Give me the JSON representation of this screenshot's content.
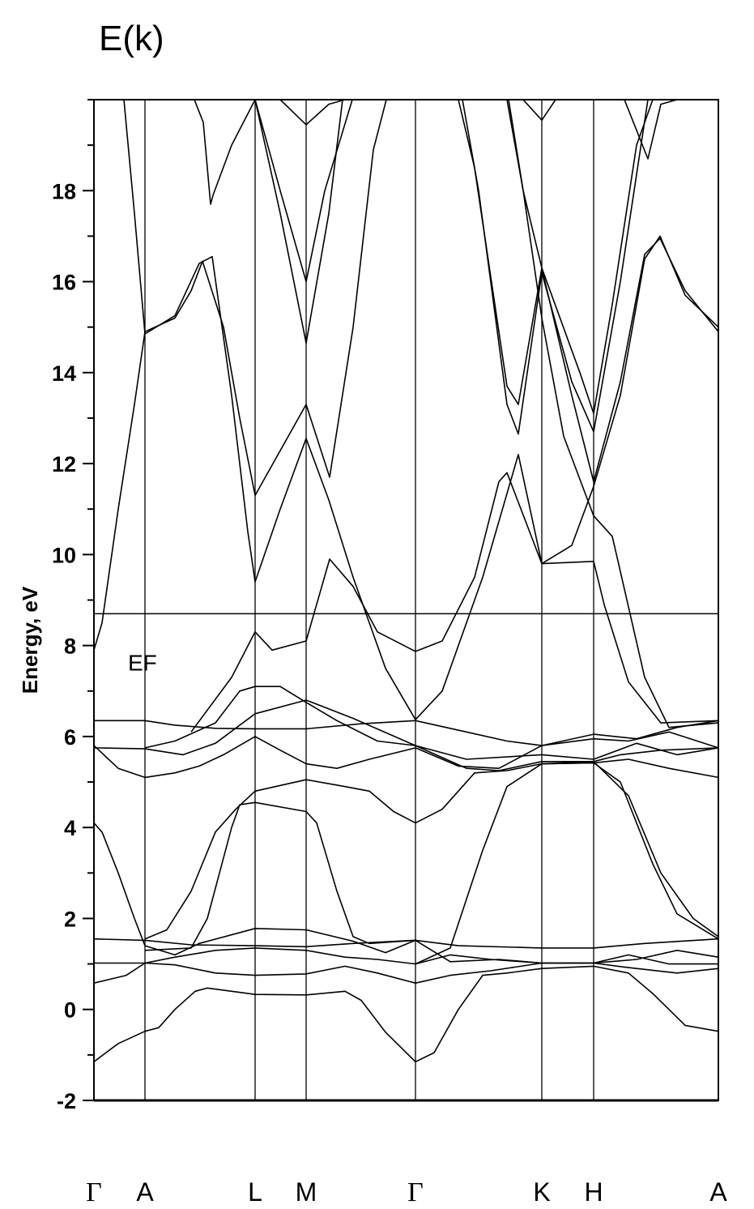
{
  "chart_data": {
    "type": "line",
    "title": "E(k)",
    "xlabel": "",
    "ylabel": "Energy, eV",
    "ylim": [
      -2,
      20
    ],
    "yticks": [
      -2,
      0,
      2,
      4,
      6,
      8,
      10,
      12,
      14,
      16,
      18
    ],
    "ytick_labels": [
      "-2",
      "0",
      "2",
      "4",
      "6",
      "8",
      "10",
      "12",
      "14",
      "16",
      "18"
    ],
    "y_minor_step": 1,
    "grid": false,
    "legend": "none",
    "line_color": "#000000",
    "high_symmetry_points": [
      {
        "label": "Γ",
        "k": 0
      },
      {
        "label": "A",
        "k": 0.63
      },
      {
        "label": "L",
        "k": 1.99
      },
      {
        "label": "M",
        "k": 2.62
      },
      {
        "label": "Γ",
        "k": 3.97
      },
      {
        "label": "K",
        "k": 5.53
      },
      {
        "label": "H",
        "k": 6.17
      },
      {
        "label": "A",
        "k": 7.71
      }
    ],
    "xlim": [
      0,
      7.71
    ],
    "fermi_level": {
      "label": "EF",
      "energy": 8.7
    },
    "bands": [
      [
        [
          0,
          -1.15
        ],
        [
          0.3,
          -0.75
        ],
        [
          0.63,
          -0.48
        ],
        [
          0.8,
          -0.4
        ],
        [
          1.0,
          0.0
        ],
        [
          1.25,
          0.4
        ],
        [
          1.4,
          0.47
        ],
        [
          1.99,
          0.33
        ],
        [
          2.62,
          0.32
        ],
        [
          3.1,
          0.4
        ],
        [
          3.3,
          0.2
        ],
        [
          3.6,
          -0.5
        ],
        [
          3.97,
          -1.15
        ],
        [
          4.2,
          -0.95
        ],
        [
          4.5,
          0.0
        ],
        [
          4.8,
          0.75
        ],
        [
          5.1,
          0.8
        ],
        [
          5.53,
          0.9
        ],
        [
          6.17,
          0.95
        ],
        [
          6.6,
          0.8
        ],
        [
          6.9,
          0.35
        ],
        [
          7.3,
          -0.35
        ],
        [
          7.71,
          -0.48
        ]
      ],
      [
        [
          0,
          0.58
        ],
        [
          0.4,
          0.75
        ],
        [
          0.63,
          1.02
        ],
        [
          1.0,
          0.98
        ],
        [
          1.5,
          0.8
        ],
        [
          1.99,
          0.75
        ],
        [
          2.62,
          0.78
        ],
        [
          3.1,
          0.95
        ],
        [
          3.5,
          0.8
        ],
        [
          3.97,
          0.58
        ],
        [
          4.4,
          0.75
        ],
        [
          4.9,
          0.85
        ],
        [
          5.53,
          1.02
        ],
        [
          6.17,
          1.02
        ],
        [
          6.6,
          0.92
        ],
        [
          7.2,
          0.8
        ],
        [
          7.71,
          0.9
        ]
      ],
      [
        [
          0,
          1.02
        ],
        [
          0.63,
          1.02
        ],
        [
          1.0,
          1.15
        ],
        [
          1.5,
          1.3
        ],
        [
          1.99,
          1.35
        ],
        [
          2.62,
          1.3
        ],
        [
          3.1,
          1.15
        ],
        [
          3.5,
          1.1
        ],
        [
          3.97,
          1.0
        ],
        [
          4.4,
          1.2
        ],
        [
          4.9,
          1.1
        ],
        [
          5.53,
          1.02
        ],
        [
          6.17,
          1.02
        ],
        [
          6.6,
          1.2
        ],
        [
          7.1,
          1.0
        ],
        [
          7.71,
          1.0
        ]
      ],
      [
        [
          0,
          1.55
        ],
        [
          0.63,
          1.52
        ],
        [
          1.2,
          1.42
        ],
        [
          1.99,
          1.4
        ],
        [
          2.62,
          1.38
        ],
        [
          3.2,
          1.45
        ],
        [
          3.97,
          1.52
        ],
        [
          4.5,
          1.4
        ],
        [
          5.53,
          1.35
        ],
        [
          6.17,
          1.35
        ],
        [
          6.8,
          1.45
        ],
        [
          7.71,
          1.55
        ]
      ],
      [
        [
          0,
          4.1
        ],
        [
          0.1,
          3.9
        ],
        [
          0.3,
          3.0
        ],
        [
          0.5,
          2.0
        ],
        [
          0.63,
          1.4
        ],
        [
          1.0,
          1.2
        ],
        [
          1.3,
          1.45
        ],
        [
          1.99,
          1.78
        ],
        [
          2.62,
          1.75
        ],
        [
          3.2,
          1.5
        ],
        [
          3.6,
          1.25
        ],
        [
          3.97,
          1.52
        ],
        [
          4.4,
          1.05
        ],
        [
          5.0,
          1.1
        ],
        [
          5.53,
          1.02
        ],
        [
          6.17,
          1.02
        ],
        [
          6.7,
          1.1
        ],
        [
          7.2,
          1.3
        ],
        [
          7.71,
          1.15
        ]
      ],
      [
        [
          0.63,
          1.55
        ],
        [
          0.9,
          1.75
        ],
        [
          1.2,
          2.6
        ],
        [
          1.5,
          3.9
        ],
        [
          1.75,
          4.4
        ],
        [
          1.99,
          4.8
        ],
        [
          2.62,
          5.05
        ],
        [
          3.1,
          4.9
        ],
        [
          3.4,
          4.8
        ],
        [
          3.7,
          4.35
        ],
        [
          3.97,
          4.1
        ],
        [
          4.3,
          4.4
        ],
        [
          4.7,
          5.2
        ],
        [
          5.1,
          5.25
        ],
        [
          5.53,
          5.4
        ],
        [
          6.17,
          5.42
        ],
        [
          6.6,
          5.5
        ],
        [
          7.1,
          5.3
        ],
        [
          7.71,
          5.1
        ]
      ],
      [
        [
          0.63,
          1.3
        ],
        [
          1.2,
          1.35
        ],
        [
          1.4,
          2.0
        ],
        [
          1.7,
          4.0
        ],
        [
          1.8,
          4.5
        ],
        [
          1.99,
          4.55
        ],
        [
          2.62,
          4.35
        ],
        [
          2.75,
          4.1
        ],
        [
          3.0,
          2.6
        ],
        [
          3.2,
          1.6
        ],
        [
          3.4,
          1.45
        ],
        [
          3.97,
          1.52
        ]
      ],
      [
        [
          3.97,
          1.0
        ],
        [
          4.4,
          1.35
        ],
        [
          4.8,
          3.5
        ],
        [
          5.1,
          4.9
        ],
        [
          5.53,
          5.4
        ],
        [
          6.17,
          5.42
        ],
        [
          6.5,
          5.0
        ],
        [
          6.9,
          3.2
        ],
        [
          7.2,
          2.1
        ],
        [
          7.71,
          1.55
        ]
      ],
      [
        [
          5.53,
          5.4
        ],
        [
          6.17,
          5.45
        ],
        [
          6.6,
          4.7
        ],
        [
          7.0,
          3.0
        ],
        [
          7.4,
          2.0
        ],
        [
          7.71,
          1.6
        ]
      ],
      [
        [
          0,
          6.35
        ],
        [
          0.63,
          6.35
        ],
        [
          1.0,
          6.25
        ],
        [
          1.5,
          6.18
        ],
        [
          1.99,
          6.17
        ],
        [
          2.62,
          6.17
        ],
        [
          3.3,
          6.28
        ],
        [
          3.97,
          6.35
        ],
        [
          4.6,
          6.1
        ],
        [
          5.1,
          5.9
        ],
        [
          5.53,
          5.8
        ],
        [
          6.17,
          6.05
        ],
        [
          6.7,
          5.95
        ],
        [
          7.2,
          6.2
        ],
        [
          7.71,
          6.35
        ]
      ],
      [
        [
          0,
          5.75
        ],
        [
          0.63,
          5.73
        ],
        [
          1.1,
          5.6
        ],
        [
          1.5,
          5.85
        ],
        [
          1.99,
          6.5
        ],
        [
          2.62,
          6.8
        ],
        [
          3.2,
          6.4
        ],
        [
          3.97,
          5.8
        ],
        [
          4.6,
          5.3
        ],
        [
          5.0,
          5.25
        ],
        [
          5.53,
          5.45
        ],
        [
          6.17,
          5.45
        ],
        [
          6.5,
          5.6
        ],
        [
          7.0,
          5.7
        ],
        [
          7.71,
          5.75
        ]
      ],
      [
        [
          0,
          5.8
        ],
        [
          0.3,
          5.3
        ],
        [
          0.63,
          5.1
        ],
        [
          1.0,
          5.2
        ],
        [
          1.3,
          5.35
        ],
        [
          1.6,
          5.6
        ],
        [
          1.99,
          6.0
        ],
        [
          2.3,
          5.7
        ],
        [
          2.62,
          5.4
        ],
        [
          3.0,
          5.3
        ],
        [
          3.4,
          5.5
        ],
        [
          3.97,
          5.75
        ],
        [
          4.5,
          5.35
        ],
        [
          5.0,
          5.3
        ],
        [
          5.53,
          5.8
        ],
        [
          6.17,
          5.95
        ],
        [
          6.6,
          5.9
        ],
        [
          7.1,
          6.1
        ],
        [
          7.71,
          5.75
        ]
      ],
      [
        [
          0.63,
          5.75
        ],
        [
          1.0,
          5.9
        ],
        [
          1.5,
          6.3
        ],
        [
          1.8,
          7.0
        ],
        [
          1.99,
          7.1
        ],
        [
          2.3,
          7.1
        ],
        [
          2.62,
          6.75
        ],
        [
          3.0,
          6.35
        ],
        [
          3.5,
          5.9
        ],
        [
          3.97,
          5.8
        ],
        [
          4.6,
          5.5
        ],
        [
          5.53,
          5.6
        ],
        [
          6.17,
          5.5
        ],
        [
          6.7,
          5.85
        ],
        [
          7.2,
          5.6
        ],
        [
          7.71,
          5.75
        ]
      ],
      [
        [
          1.2,
          6.1
        ],
        [
          1.7,
          7.3
        ],
        [
          1.99,
          8.3
        ],
        [
          2.2,
          7.9
        ],
        [
          2.62,
          8.1
        ],
        [
          2.91,
          9.9
        ],
        [
          3.2,
          9.3
        ],
        [
          3.5,
          8.3
        ],
        [
          3.97,
          7.87
        ],
        [
          4.3,
          8.1
        ],
        [
          4.7,
          9.5
        ],
        [
          5.0,
          11.6
        ],
        [
          5.1,
          11.8
        ],
        [
          5.53,
          9.8
        ],
        [
          6.17,
          9.85
        ],
        [
          6.3,
          8.9
        ],
        [
          6.6,
          7.2
        ],
        [
          7.0,
          6.3
        ],
        [
          7.71,
          6.35
        ]
      ],
      [
        [
          0.37,
          20
        ],
        [
          0.5,
          17.5
        ],
        [
          0.63,
          14.85
        ],
        [
          1.0,
          15.25
        ],
        [
          1.3,
          16.4
        ],
        [
          1.46,
          16.55
        ],
        [
          1.7,
          13.5
        ],
        [
          1.9,
          10.5
        ],
        [
          1.99,
          9.4
        ],
        [
          2.3,
          11.0
        ],
        [
          2.62,
          12.55
        ],
        [
          2.9,
          11.2
        ],
        [
          3.2,
          9.5
        ],
        [
          3.6,
          7.5
        ],
        [
          3.97,
          6.37
        ],
        [
          4.3,
          7.0
        ],
        [
          4.8,
          9.5
        ],
        [
          5.24,
          12.2
        ],
        [
          5.53,
          9.8
        ]
      ],
      [
        [
          0,
          7.9
        ],
        [
          0.1,
          8.5
        ],
        [
          0.3,
          11.0
        ],
        [
          0.5,
          13.3
        ],
        [
          0.63,
          14.9
        ],
        [
          1.0,
          15.2
        ],
        [
          1.2,
          15.8
        ],
        [
          1.34,
          16.45
        ],
        [
          1.6,
          15.0
        ],
        [
          1.8,
          13.0
        ],
        [
          1.99,
          11.3
        ],
        [
          2.62,
          13.3
        ],
        [
          2.91,
          11.7
        ],
        [
          3.2,
          15.0
        ],
        [
          3.45,
          18.9
        ],
        [
          3.61,
          20
        ]
      ],
      [
        [
          1.24,
          20
        ],
        [
          1.35,
          19.5
        ],
        [
          1.44,
          17.7
        ],
        [
          1.47,
          17.9
        ],
        [
          1.7,
          19.0
        ],
        [
          1.99,
          20
        ],
        [
          2.3,
          17.5
        ],
        [
          2.62,
          14.65
        ],
        [
          2.9,
          17.5
        ],
        [
          3.07,
          20
        ]
      ],
      [
        [
          1.99,
          20
        ],
        [
          2.3,
          18.0
        ],
        [
          2.62,
          16.0
        ],
        [
          2.85,
          18.0
        ],
        [
          3.19,
          20
        ]
      ],
      [
        [
          2.3,
          20
        ],
        [
          2.62,
          19.45
        ],
        [
          2.9,
          19.9
        ],
        [
          3.1,
          20
        ]
      ],
      [
        [
          4.5,
          20
        ],
        [
          4.7,
          18.5
        ],
        [
          5.1,
          13.7
        ],
        [
          5.24,
          13.3
        ],
        [
          5.53,
          16.3
        ],
        [
          6.0,
          14.0
        ],
        [
          6.17,
          13.1
        ],
        [
          6.4,
          15.5
        ],
        [
          6.7,
          19.0
        ],
        [
          6.9,
          20
        ]
      ],
      [
        [
          4.55,
          20
        ],
        [
          4.75,
          18.0
        ],
        [
          5.1,
          13.3
        ],
        [
          5.24,
          12.65
        ],
        [
          5.53,
          16.2
        ],
        [
          5.9,
          13.8
        ],
        [
          6.17,
          12.7
        ],
        [
          6.5,
          16.0
        ],
        [
          6.84,
          20
        ]
      ],
      [
        [
          5.1,
          20
        ],
        [
          5.3,
          18.0
        ],
        [
          5.53,
          16.3
        ],
        [
          5.9,
          13.5
        ],
        [
          6.17,
          11.6
        ],
        [
          6.5,
          13.8
        ],
        [
          6.8,
          16.6
        ],
        [
          6.99,
          16.95
        ],
        [
          7.3,
          15.8
        ],
        [
          7.71,
          14.9
        ]
      ],
      [
        [
          5.12,
          20
        ],
        [
          5.3,
          18.0
        ],
        [
          5.53,
          15.2
        ],
        [
          5.8,
          12.6
        ],
        [
          6.17,
          10.85
        ],
        [
          6.4,
          10.4
        ],
        [
          6.8,
          7.3
        ],
        [
          7.1,
          6.2
        ],
        [
          7.71,
          6.3
        ]
      ],
      [
        [
          5.53,
          9.8
        ],
        [
          5.9,
          10.2
        ],
        [
          6.17,
          11.5
        ],
        [
          6.5,
          13.5
        ],
        [
          6.8,
          16.5
        ],
        [
          6.99,
          17.0
        ],
        [
          7.3,
          15.7
        ],
        [
          7.71,
          15.0
        ]
      ],
      [
        [
          5.3,
          20
        ],
        [
          5.53,
          19.55
        ],
        [
          5.7,
          20
        ]
      ],
      [
        [
          6.55,
          20
        ],
        [
          6.84,
          18.7
        ],
        [
          7.0,
          19.9
        ],
        [
          7.2,
          20
        ]
      ]
    ]
  }
}
